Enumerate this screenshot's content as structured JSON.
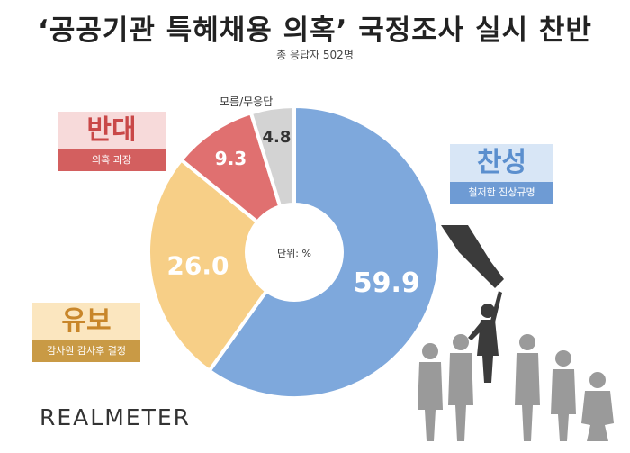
{
  "chart_data": {
    "type": "pie",
    "title": "‘공공기관 특혜채용 의혹’ 국정조사 실시 찬반",
    "subtitle": "총 응답자 502명",
    "unit_label": "단위: %",
    "slices": [
      {
        "name": "찬성",
        "value": 59.9,
        "value_label": "59.9",
        "color": "#7ea8dc",
        "desc": "철저한 진상규명"
      },
      {
        "name": "유보",
        "value": 26.0,
        "value_label": "26.0",
        "color": "#f7cf87",
        "desc": "감사원 감사후 결정"
      },
      {
        "name": "반대",
        "value": 9.3,
        "value_label": "9.3",
        "color": "#e07070",
        "desc": "의혹 과장"
      },
      {
        "name": "모름/무응답",
        "value": 4.8,
        "value_label": "4.8",
        "color": "#d3d3d3",
        "desc": ""
      }
    ]
  },
  "logo": "REALMETER"
}
